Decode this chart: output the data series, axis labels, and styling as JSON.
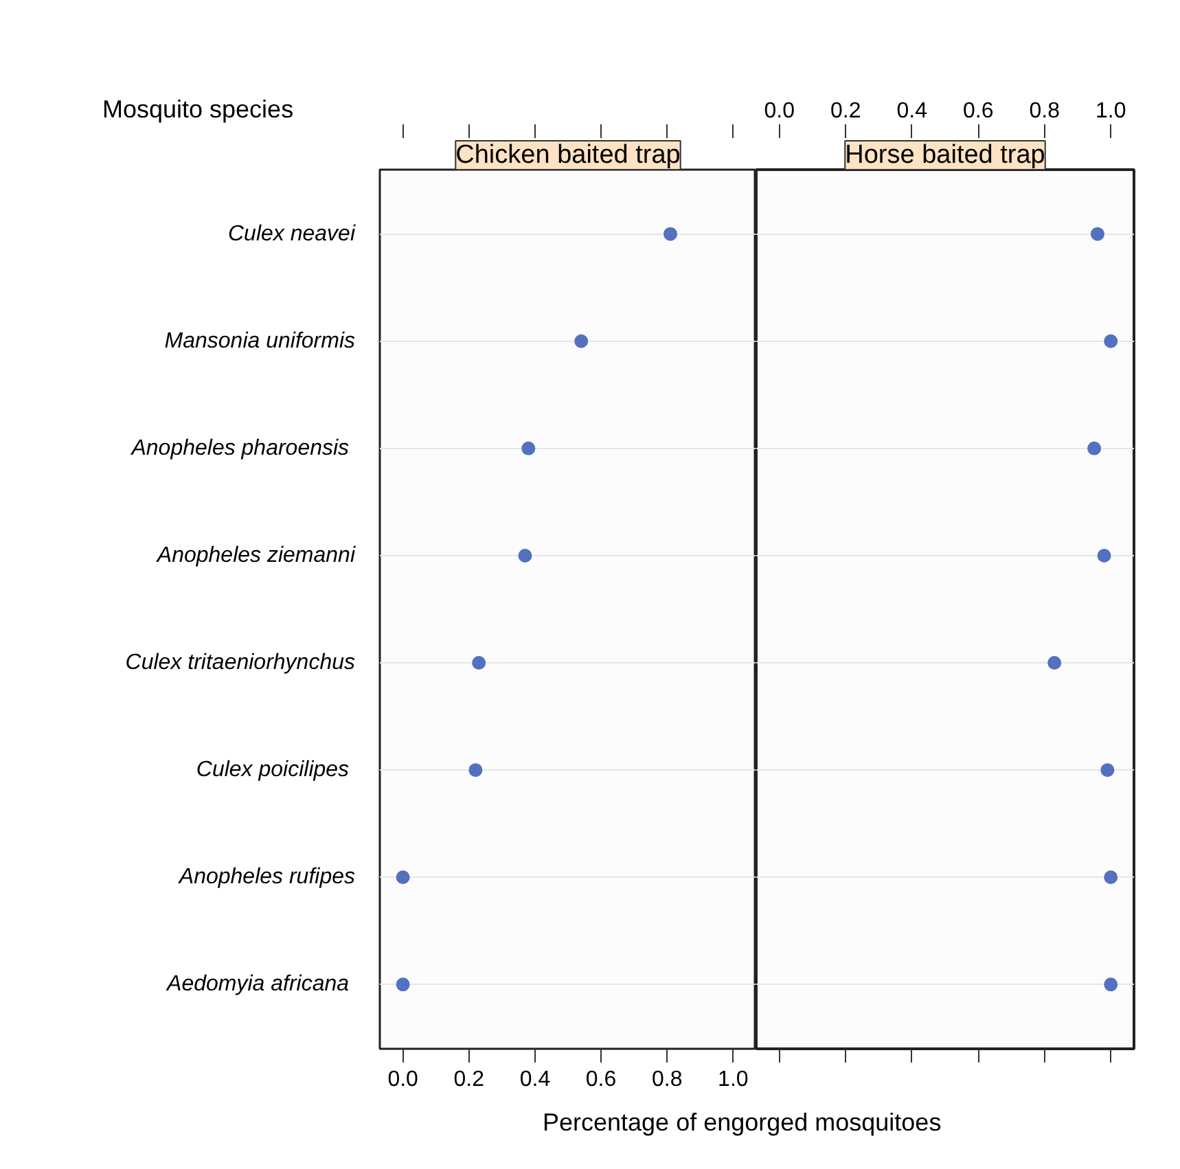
{
  "chart_data": [
    {
      "type": "scatter",
      "orientation": "horizontal",
      "title": "Chicken baited trap",
      "ylabel": "Mosquito species",
      "categories": [
        "Culex neavei",
        "Mansonia uniformis",
        "Anopheles  pharoensis",
        "Anopheles ziemanni",
        "Culex tritaeniorhynchus",
        "Culex  poicilipes",
        "Anopheles rufipes",
        "Aedomyia  africana"
      ],
      "series": [
        {
          "color": "#5470c0",
          "values": [
            0.81,
            0.54,
            0.38,
            0.37,
            0.23,
            0.22,
            0.0,
            0.0
          ]
        }
      ],
      "xlim": [
        -0.07,
        1.07
      ],
      "xticks": [
        {
          "value": 0,
          "label": "0.0"
        },
        0.2,
        0.4,
        0.6,
        0.8,
        {
          "value": 1,
          "label": "1.0"
        }
      ],
      "marker": "circle",
      "grid": "y"
    },
    {
      "type": "scatter",
      "orientation": "horizontal",
      "title": "Horse baited trap",
      "xlabel": "Percentage of engorged mosquitoes",
      "categories": [
        "Culex neavei",
        "Mansonia uniformis",
        "Anopheles  pharoensis",
        "Anopheles ziemanni",
        "Culex tritaeniorhynchus",
        "Culex  poicilipes",
        "Anopheles rufipes",
        "Aedomyia  africana"
      ],
      "series": [
        {
          "color": "#5470c0",
          "axis": "x2",
          "values": [
            0.96,
            1.0,
            0.95,
            0.98,
            0.83,
            0.99,
            1.0,
            1.0
          ]
        }
      ],
      "x2lim": [
        -0.07,
        1.07
      ],
      "x2ticks": [
        {
          "value": 0,
          "label": "0.0"
        },
        0.2,
        0.4,
        0.6,
        0.8,
        {
          "value": 1,
          "label": "1.0"
        }
      ],
      "marker": "circle",
      "grid": "y",
      "tick_labels": "x"
    }
  ]
}
